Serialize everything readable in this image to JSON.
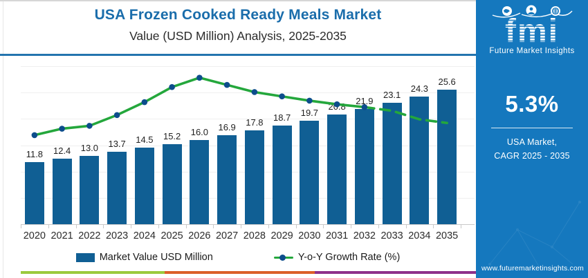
{
  "header": {
    "title": "USA Frozen Cooked Ready Meals Market",
    "subtitle": "Value (USD Million) Analysis, 2025-2035"
  },
  "chart_data": {
    "type": "bar+line",
    "title": "USA Frozen Cooked Ready Meals Market",
    "subtitle": "Value (USD Million) Analysis, 2025-2035",
    "categories": [
      "2020",
      "2021",
      "2022",
      "2023",
      "2024",
      "2025",
      "2026",
      "2027",
      "2028",
      "2029",
      "2030",
      "2031",
      "2032",
      "2033",
      "2034",
      "2035"
    ],
    "series": [
      {
        "name": "Market Value USD Million",
        "type": "bar",
        "color": "#105f94",
        "values": [
          11.8,
          12.4,
          13.0,
          13.7,
          14.5,
          15.2,
          16.0,
          16.9,
          17.8,
          18.7,
          19.7,
          20.8,
          21.9,
          23.1,
          24.3,
          25.6
        ]
      },
      {
        "name": "Y-o-Y Growth Rate (%)",
        "type": "line",
        "color": "#24a73c",
        "marker_color": "#0d4d8c",
        "values_estimated_pct": [
          5.24,
          5.33,
          5.37,
          5.52,
          5.7,
          5.91,
          6.04,
          5.94,
          5.84,
          5.78,
          5.72,
          5.67,
          5.63,
          5.58,
          5.46,
          5.41
        ],
        "solid_with_markers_through": "2032",
        "dashed_from": "2033",
        "axis_hidden": true
      }
    ],
    "ylim": [
      0,
      30
    ],
    "growth_axis_range_pct": [
      4.0,
      6.2
    ],
    "gridlines": "horizontal, unlabeled",
    "legend_position": "bottom",
    "data_labels_shown": true
  },
  "footer": {
    "strip_colors": [
      "#9bca3d",
      "#dc5f28",
      "#8e2f8a"
    ]
  },
  "sidebar": {
    "bg_color": "#1578be",
    "logo": {
      "wordmark": "fmi",
      "tagline": "Future Market Insights",
      "icons": [
        "map-icon",
        "person-icon",
        "globe-icon"
      ]
    },
    "stat_value": "5.3%",
    "stat_label_line1": "USA Market,",
    "stat_label_line2": "CAGR 2025 - 2035",
    "website": "www.futuremarketinsights.com"
  }
}
